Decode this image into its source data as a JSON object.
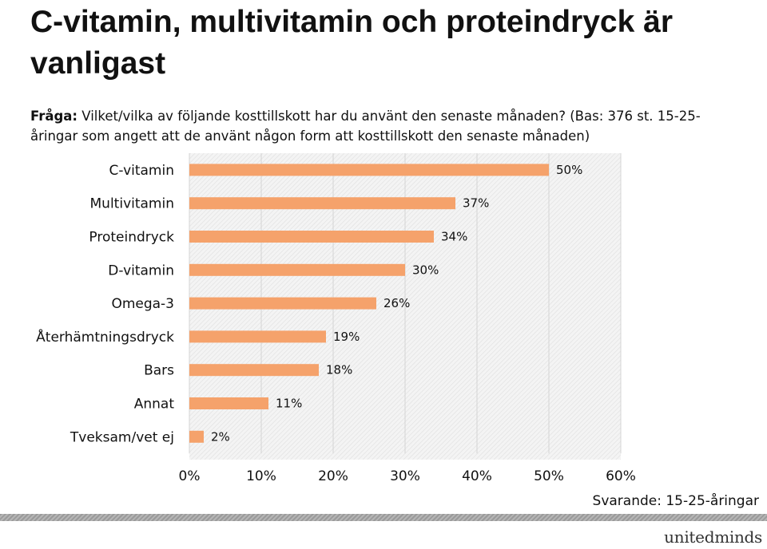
{
  "header": {
    "title": "C-vitamin, multivitamin och proteindryck är vanligast",
    "question_label": "Fråga:",
    "question_text": " Vilket/vilka av följande kosttillskott har du använt den senaste månaden? (Bas: 376 st. 15-25-åringar som angett att de använt någon form att kosttillskott den senaste månaden)"
  },
  "chart_data": {
    "type": "bar",
    "orientation": "horizontal",
    "categories": [
      "C-vitamin",
      "Multivitamin",
      "Proteindryck",
      "D-vitamin",
      "Omega-3",
      "Återhämtningsdryck",
      "Bars",
      "Annat",
      "Tveksam/vet ej"
    ],
    "values": [
      50,
      37,
      34,
      30,
      26,
      19,
      18,
      11,
      2
    ],
    "value_labels": [
      "50%",
      "37%",
      "34%",
      "30%",
      "26%",
      "19%",
      "18%",
      "11%",
      "2%"
    ],
    "xlim": [
      0,
      60
    ],
    "x_ticks": [
      "0%",
      "10%",
      "20%",
      "30%",
      "40%",
      "50%",
      "60%"
    ],
    "bar_color": "#f5a26b",
    "grid": true
  },
  "footer": {
    "respondents": "Svarande: 15-25-åringar",
    "logo": "unitedminds"
  }
}
